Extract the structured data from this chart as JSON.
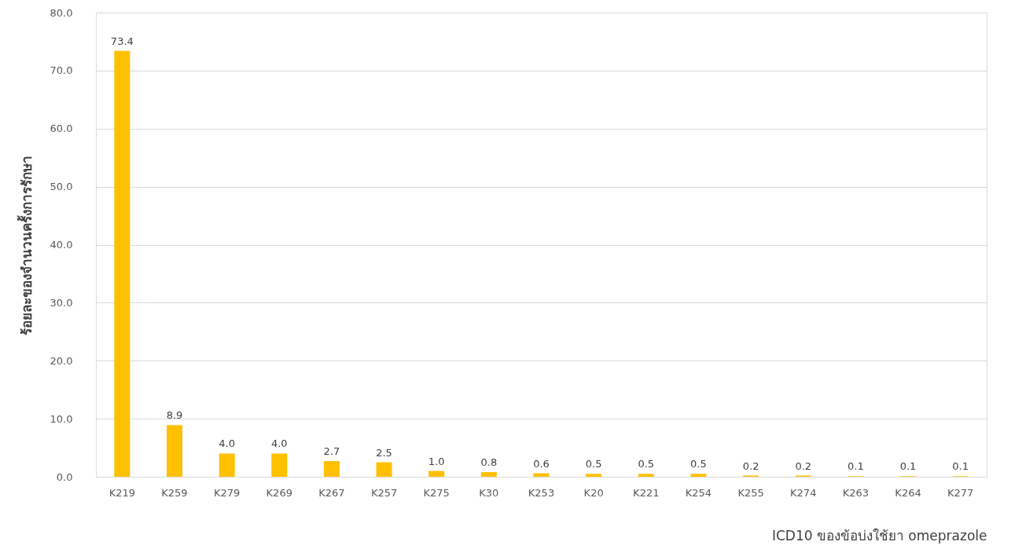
{
  "chart_data": {
    "type": "bar",
    "xlabel": "ICD10  ของข้อบ่งใช้ยา omeprazole",
    "ylabel": "ร้อยละของจำนวนครั้งการรักษา",
    "categories": [
      "K219",
      "K259",
      "K279",
      "K269",
      "K267",
      "K257",
      "K275",
      "K30",
      "K253",
      "K20",
      "K221",
      "K254",
      "K255",
      "K274",
      "K263",
      "K264",
      "K277"
    ],
    "values": [
      73.4,
      8.9,
      4.0,
      4.0,
      2.7,
      2.5,
      1.0,
      0.8,
      0.6,
      0.5,
      0.5,
      0.5,
      0.2,
      0.2,
      0.1,
      0.1,
      0.1
    ],
    "value_labels": [
      "73.4",
      "8.9",
      "4.0",
      "4.0",
      "2.7",
      "2.5",
      "1.0",
      "0.8",
      "0.6",
      "0.5",
      "0.5",
      "0.5",
      "0.2",
      "0.2",
      "0.1",
      "0.1",
      "0.1"
    ],
    "color": "#ffc000",
    "ylim": [
      0,
      80
    ],
    "yticks": [
      {
        "value": 0,
        "label": "0.0"
      },
      {
        "value": 10,
        "label": "10.0"
      },
      {
        "value": 20,
        "label": "20.0"
      },
      {
        "value": 30,
        "label": "30.0"
      },
      {
        "value": 40,
        "label": "40.0"
      },
      {
        "value": 50,
        "label": "50.0"
      },
      {
        "value": 60,
        "label": "60.0"
      },
      {
        "value": 70,
        "label": "70.0"
      },
      {
        "value": 80,
        "label": "80.0"
      }
    ],
    "grid": "y"
  }
}
